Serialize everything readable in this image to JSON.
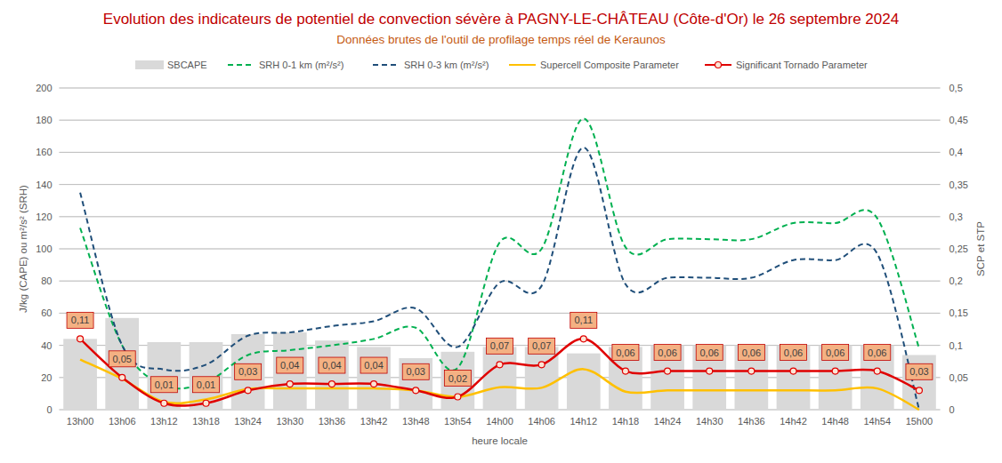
{
  "chart_data": {
    "type": "bar",
    "title": "Evolution des indicateurs de potentiel de convection sévère à PAGNY-LE-CHÂTEAU (Côte-d'Or) le 26 septembre 2024",
    "subtitle": "Données brutes de l'outil de profilage temps réel de Keraunos",
    "xlabel": "heure locale",
    "ylabel": "J/kg (CAPE)  ou  m²/s² (SRH)",
    "y2label": "SCP et STP",
    "categories": [
      "13h00",
      "13h06",
      "13h12",
      "13h18",
      "13h24",
      "13h30",
      "13h36",
      "13h42",
      "13h48",
      "13h54",
      "14h00",
      "14h06",
      "14h12",
      "14h18",
      "14h24",
      "14h30",
      "14h36",
      "14h42",
      "14h48",
      "14h54",
      "15h00"
    ],
    "series": [
      {
        "name": "SBCAPE",
        "type": "bar",
        "color": "#d9d9d9",
        "values": [
          44,
          57,
          42,
          42,
          47,
          48,
          43,
          39,
          32,
          36,
          39,
          39,
          35,
          39,
          40,
          40,
          40,
          40,
          40,
          40,
          34
        ]
      },
      {
        "name": "SRH 0-1 km (m²/s²)",
        "type": "line",
        "color": "#00b050",
        "line_style": "dashed",
        "values": [
          113,
          40,
          15,
          17,
          34,
          37,
          40,
          44,
          51,
          26,
          104,
          100,
          181,
          101,
          106,
          106,
          106,
          116,
          116,
          119,
          38
        ]
      },
      {
        "name": "SRH 0-3 km (m²/s²)",
        "type": "line",
        "color": "#1f4e79",
        "line_style": "dashed",
        "values": [
          135,
          40,
          25,
          28,
          46,
          48,
          52,
          55,
          63,
          39,
          79,
          77,
          163,
          78,
          82,
          82,
          82,
          93,
          93,
          97,
          0
        ]
      },
      {
        "name": "Supercell Composite Parameter",
        "type": "line",
        "color": "#ffc000",
        "axis": "y2",
        "values": [
          0.078,
          0.048,
          0.012,
          0.016,
          0.032,
          0.033,
          0.033,
          0.033,
          0.03,
          0.02,
          0.035,
          0.034,
          0.063,
          0.028,
          0.03,
          0.03,
          0.03,
          0.03,
          0.03,
          0.033,
          0.0
        ]
      },
      {
        "name": "Significant Tornado Parameter",
        "type": "line",
        "color": "#e00000",
        "axis": "y2",
        "marker": "circle",
        "data_labels": true,
        "values": [
          0.11,
          0.05,
          0.01,
          0.01,
          0.03,
          0.04,
          0.04,
          0.04,
          0.03,
          0.02,
          0.07,
          0.07,
          0.11,
          0.06,
          0.06,
          0.06,
          0.06,
          0.06,
          0.06,
          0.06,
          0.03
        ],
        "value_labels": [
          "0,11",
          "0,05",
          "0,01",
          "0,01",
          "0,03",
          "0,04",
          "0,04",
          "0,04",
          "0,03",
          "0,02",
          "0,07",
          "0,07",
          "0,11",
          "0,06",
          "0,06",
          "0,06",
          "0,06",
          "0,06",
          "0,06",
          "0,06",
          "0,03"
        ]
      }
    ],
    "ylim": [
      0,
      200
    ],
    "yticks": [
      0,
      20,
      40,
      60,
      80,
      100,
      120,
      140,
      160,
      180,
      200
    ],
    "y2lim": [
      0,
      0.5
    ],
    "y2ticks": [
      0,
      {
        "value": 0.05,
        "label": "0,05"
      },
      {
        "value": 0.1,
        "label": "0,1"
      },
      {
        "value": 0.15,
        "label": "0,15"
      },
      {
        "value": 0.2,
        "label": "0,2"
      },
      {
        "value": 0.25,
        "label": "0,25"
      },
      {
        "value": 0.3,
        "label": "0,3"
      },
      {
        "value": 0.35,
        "label": "0,35"
      },
      {
        "value": 0.4,
        "label": "0,4"
      },
      {
        "value": 0.45,
        "label": "0,45"
      },
      {
        "value": 0.5,
        "label": "0,5"
      }
    ],
    "grid": true,
    "legend": "top"
  }
}
